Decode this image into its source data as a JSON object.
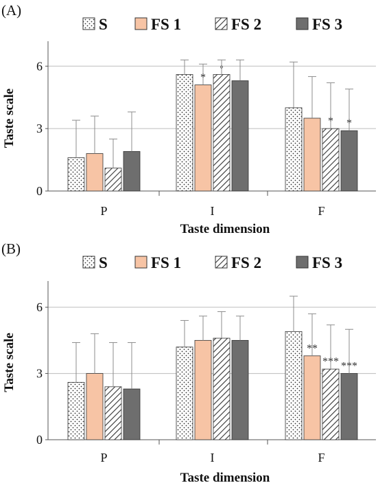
{
  "chart_data": [
    {
      "type": "bar",
      "panel": "(A)",
      "categories": [
        "P",
        "I",
        "F"
      ],
      "series": [
        {
          "name": "S",
          "values": [
            1.6,
            5.6,
            4.0
          ],
          "errors": [
            1.8,
            0.7,
            2.2
          ],
          "significance": [
            "",
            "",
            ""
          ]
        },
        {
          "name": "FS 1",
          "values": [
            1.8,
            5.1,
            3.5
          ],
          "errors": [
            1.8,
            1.0,
            2.0
          ],
          "significance": [
            "",
            "*",
            ""
          ]
        },
        {
          "name": "FS 2",
          "values": [
            1.1,
            5.6,
            3.0
          ],
          "errors": [
            1.4,
            0.7,
            2.2
          ],
          "significance": [
            "",
            "◦",
            "*"
          ]
        },
        {
          "name": "FS 3",
          "values": [
            1.9,
            5.3,
            2.9
          ],
          "errors": [
            1.9,
            1.0,
            2.0
          ],
          "significance": [
            "",
            "",
            "*"
          ]
        }
      ],
      "xlabel": "Taste dimension",
      "ylabel": "Taste scale",
      "ylim": [
        0,
        7
      ],
      "yticks": [
        0,
        3,
        6
      ],
      "grid": true,
      "legend": "top"
    },
    {
      "type": "bar",
      "panel": "(B)",
      "categories": [
        "P",
        "I",
        "F"
      ],
      "series": [
        {
          "name": "S",
          "values": [
            2.6,
            4.2,
            4.9
          ],
          "errors": [
            1.8,
            1.2,
            1.6
          ],
          "significance": [
            "",
            "",
            ""
          ]
        },
        {
          "name": "FS 1",
          "values": [
            3.0,
            4.5,
            3.8
          ],
          "errors": [
            1.8,
            1.1,
            1.9
          ],
          "significance": [
            "",
            "",
            "**"
          ]
        },
        {
          "name": "FS 2",
          "values": [
            2.4,
            4.6,
            3.2
          ],
          "errors": [
            2.0,
            1.2,
            2.0
          ],
          "significance": [
            "",
            "",
            "***"
          ]
        },
        {
          "name": "FS 3",
          "values": [
            2.3,
            4.5,
            3.0
          ],
          "errors": [
            2.1,
            1.1,
            2.0
          ],
          "significance": [
            "",
            "",
            "***"
          ]
        }
      ],
      "xlabel": "Taste dimension",
      "ylabel": "Taste scale",
      "ylim": [
        0,
        7
      ],
      "yticks": [
        0,
        3,
        6
      ],
      "grid": true,
      "legend": "top"
    }
  ],
  "colors": {
    "S": "#ffffff",
    "FS 1": "#f7c4a5",
    "FS 2": "#ffffff",
    "FS 3": "#6e6e6e",
    "grid": "#bdbdbd",
    "axis": "#555555",
    "error_bar": "#8c8c8c"
  },
  "patterns": {
    "S": "dots",
    "FS 1": "solid",
    "FS 2": "diagonal-hatch",
    "FS 3": "solid"
  }
}
